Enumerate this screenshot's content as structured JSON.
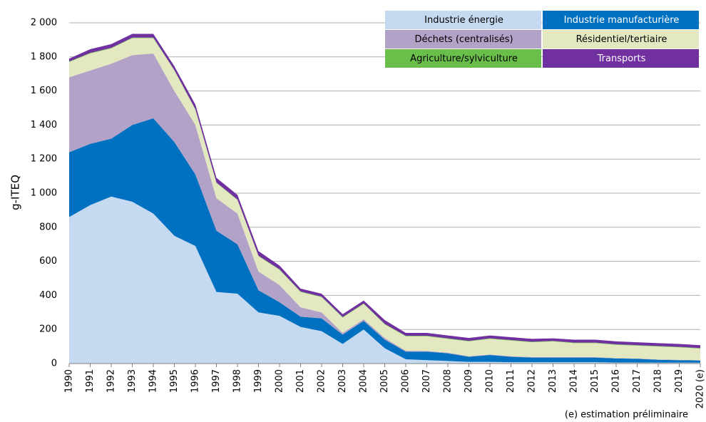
{
  "chart_data": {
    "type": "stacked_area",
    "y_label": "g-ITEQ",
    "annotation": "(e) estimation préliminaire",
    "categories": [
      "1990",
      "1991",
      "1992",
      "1993",
      "1994",
      "1995",
      "1996",
      "1997",
      "1998",
      "1999",
      "2000",
      "2001",
      "2002",
      "2003",
      "2004",
      "2005",
      "2006",
      "2007",
      "2008",
      "2009",
      "2010",
      "2011",
      "2012",
      "2013",
      "2014",
      "2015",
      "2016",
      "2017",
      "2018",
      "2019",
      "2020 (e)"
    ],
    "series": [
      {
        "name": "Industrie énergie",
        "color": "#c5d9f1",
        "values": [
          860,
          930,
          980,
          950,
          880,
          750,
          690,
          420,
          410,
          300,
          280,
          215,
          190,
          115,
          200,
          90,
          25,
          20,
          15,
          10,
          10,
          8,
          8,
          8,
          8,
          8,
          6,
          6,
          5,
          5,
          5
        ]
      },
      {
        "name": "Industrie manufacturière",
        "color": "#0070c0",
        "values": [
          380,
          360,
          340,
          450,
          560,
          550,
          420,
          360,
          290,
          130,
          80,
          60,
          75,
          55,
          50,
          50,
          45,
          50,
          45,
          30,
          40,
          32,
          27,
          27,
          27,
          27,
          24,
          22,
          17,
          15,
          13
        ]
      },
      {
        "name": "Déchets (centralisés)",
        "color": "#b3a2c7",
        "values": [
          440,
          430,
          440,
          410,
          380,
          300,
          290,
          190,
          180,
          110,
          100,
          55,
          35,
          10,
          10,
          10,
          5,
          4,
          4,
          3,
          3,
          3,
          3,
          3,
          3,
          3,
          2,
          2,
          2,
          2,
          2
        ]
      },
      {
        "name": "Résidentiel/tertiaire",
        "color": "#e4e8c0",
        "values": [
          90,
          100,
          90,
          100,
          90,
          120,
          90,
          90,
          80,
          90,
          90,
          90,
          90,
          90,
          90,
          80,
          85,
          86,
          81,
          87,
          92,
          92,
          87,
          92,
          82,
          82,
          78,
          75,
          76,
          73,
          68
        ]
      },
      {
        "name": "Agriculture/sylviculture",
        "color": "#6abf4b",
        "values": [
          3,
          3,
          3,
          3,
          3,
          3,
          3,
          3,
          3,
          3,
          3,
          3,
          3,
          3,
          3,
          3,
          3,
          3,
          3,
          3,
          3,
          3,
          3,
          3,
          3,
          3,
          3,
          3,
          3,
          3,
          3
        ]
      },
      {
        "name": "Transports",
        "color": "#7030a0",
        "values": [
          17,
          22,
          22,
          22,
          22,
          22,
          27,
          27,
          27,
          27,
          22,
          17,
          17,
          17,
          17,
          22,
          17,
          17,
          17,
          17,
          17,
          17,
          17,
          15,
          17,
          17,
          17,
          17,
          17,
          17,
          17
        ]
      }
    ],
    "ylim": [
      0,
      2000
    ],
    "yticks": [
      0,
      200,
      400,
      600,
      800,
      {
        "value": 1000,
        "label": "1 000"
      },
      {
        "value": 1200,
        "label": "1 200"
      },
      {
        "value": 1400,
        "label": "1 400"
      },
      {
        "value": 1600,
        "label": "1 600"
      },
      {
        "value": 1800,
        "label": "1 800"
      },
      {
        "value": 2000,
        "label": "2 000"
      }
    ],
    "grid": true,
    "legend": "top-right"
  }
}
